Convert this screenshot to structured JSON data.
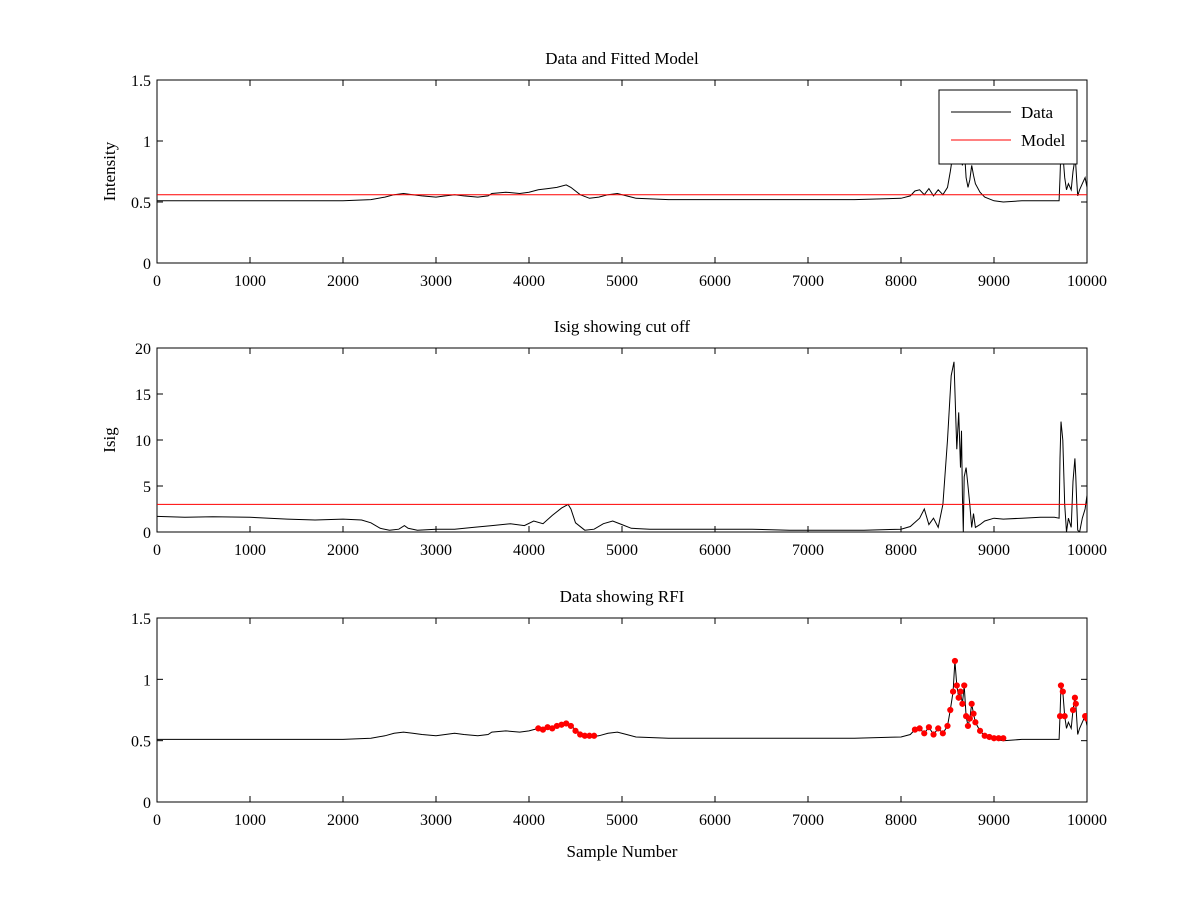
{
  "chart_data": [
    {
      "type": "line",
      "title": "Data and Fitted Model",
      "xlabel": "",
      "ylabel": "Intensity",
      "xlim": [
        0,
        10000
      ],
      "ylim": [
        0,
        1.5
      ],
      "xticks": [
        0,
        1000,
        2000,
        3000,
        4000,
        5000,
        6000,
        7000,
        8000,
        9000,
        10000
      ],
      "xtick_labels": [
        "0",
        "1000",
        "2000",
        "3000",
        "4000",
        "5000",
        "6000",
        "7000",
        "8000",
        "9000",
        "10000"
      ],
      "yticks": [
        0,
        0.5,
        1,
        1.5
      ],
      "ytick_labels": [
        "0",
        "0.5",
        "1",
        "1.5"
      ],
      "grid": false,
      "legend": {
        "position": "top-right",
        "entries": [
          "Data",
          "Model"
        ]
      },
      "series": [
        {
          "name": "Data",
          "color": "#000000",
          "style": "line",
          "x": [
            0,
            500,
            1000,
            1500,
            2000,
            2300,
            2450,
            2550,
            2650,
            2750,
            2850,
            3000,
            3100,
            3200,
            3300,
            3450,
            3560,
            3600,
            3750,
            3900,
            4000,
            4100,
            4200,
            4300,
            4400,
            4450,
            4550,
            4650,
            4750,
            4850,
            4950,
            5050,
            5150,
            5500,
            6000,
            6500,
            7000,
            7500,
            8000,
            8100,
            8150,
            8200,
            8250,
            8300,
            8350,
            8400,
            8450,
            8500,
            8530,
            8560,
            8580,
            8600,
            8620,
            8640,
            8660,
            8680,
            8700,
            8720,
            8740,
            8760,
            8780,
            8800,
            8850,
            8900,
            9000,
            9100,
            9300,
            9500,
            9650,
            9700,
            9710,
            9720,
            9740,
            9760,
            9780,
            9800,
            9830,
            9850,
            9870,
            9880,
            9900,
            9920,
            9950,
            9980,
            10000
          ],
          "y": [
            0.51,
            0.51,
            0.51,
            0.51,
            0.51,
            0.52,
            0.54,
            0.56,
            0.57,
            0.56,
            0.55,
            0.54,
            0.55,
            0.56,
            0.55,
            0.54,
            0.55,
            0.57,
            0.58,
            0.57,
            0.58,
            0.6,
            0.61,
            0.62,
            0.64,
            0.62,
            0.56,
            0.53,
            0.54,
            0.56,
            0.57,
            0.55,
            0.53,
            0.52,
            0.52,
            0.52,
            0.52,
            0.52,
            0.53,
            0.55,
            0.59,
            0.6,
            0.56,
            0.61,
            0.55,
            0.6,
            0.56,
            0.62,
            0.75,
            0.9,
            1.15,
            0.95,
            0.85,
            0.9,
            0.8,
            0.95,
            0.7,
            0.62,
            0.68,
            0.8,
            0.72,
            0.65,
            0.58,
            0.54,
            0.51,
            0.5,
            0.51,
            0.51,
            0.51,
            0.51,
            0.7,
            0.95,
            0.9,
            0.7,
            0.6,
            0.65,
            0.6,
            0.75,
            0.85,
            0.8,
            0.55,
            0.6,
            0.65,
            0.7,
            0.62
          ]
        },
        {
          "name": "Model",
          "color": "#ff0000",
          "style": "line",
          "x": [
            0,
            10000
          ],
          "y": [
            0.56,
            0.56
          ]
        }
      ]
    },
    {
      "type": "line",
      "title": "Isig showing cut off",
      "xlabel": "",
      "ylabel": "Isig",
      "xlim": [
        0,
        10000
      ],
      "ylim": [
        0,
        20
      ],
      "xticks": [
        0,
        1000,
        2000,
        3000,
        4000,
        5000,
        6000,
        7000,
        8000,
        9000,
        10000
      ],
      "xtick_labels": [
        "0",
        "1000",
        "2000",
        "3000",
        "4000",
        "5000",
        "6000",
        "7000",
        "8000",
        "9000",
        "10000"
      ],
      "yticks": [
        0,
        5,
        10,
        15,
        20
      ],
      "ytick_labels": [
        "0",
        "5",
        "10",
        "15",
        "20"
      ],
      "grid": false,
      "series": [
        {
          "color": "#000000",
          "style": "line",
          "x": [
            0,
            300,
            600,
            1000,
            1400,
            1700,
            2000,
            2200,
            2300,
            2400,
            2500,
            2600,
            2660,
            2700,
            2800,
            3000,
            3200,
            3400,
            3600,
            3800,
            3950,
            4050,
            4150,
            4250,
            4350,
            4420,
            4450,
            4500,
            4600,
            4700,
            4800,
            4900,
            5000,
            5100,
            5300,
            5600,
            6000,
            6400,
            6800,
            7200,
            7600,
            8000,
            8100,
            8200,
            8250,
            8300,
            8350,
            8400,
            8450,
            8500,
            8540,
            8570,
            8590,
            8600,
            8620,
            8640,
            8650,
            8660,
            8670,
            8680,
            8700,
            8720,
            8740,
            8760,
            8780,
            8800,
            8850,
            8900,
            9000,
            9100,
            9300,
            9500,
            9650,
            9700,
            9710,
            9720,
            9740,
            9760,
            9780,
            9800,
            9830,
            9850,
            9870,
            9880,
            9900,
            9920,
            9950,
            9980,
            10000
          ],
          "y": [
            1.7,
            1.6,
            1.65,
            1.6,
            1.4,
            1.3,
            1.4,
            1.3,
            1.0,
            0.4,
            0.2,
            0.3,
            0.7,
            0.4,
            0.2,
            0.3,
            0.3,
            0.5,
            0.7,
            0.9,
            0.7,
            1.2,
            0.9,
            1.8,
            2.6,
            3.0,
            2.5,
            1.0,
            0.2,
            0.3,
            0.9,
            1.2,
            0.8,
            0.4,
            0.3,
            0.3,
            0.3,
            0.3,
            0.2,
            0.2,
            0.2,
            0.3,
            0.6,
            1.5,
            2.5,
            0.8,
            1.5,
            0.5,
            3.0,
            10.0,
            17.0,
            18.5,
            12.0,
            9.0,
            13.0,
            7.0,
            11.0,
            4.0,
            0.0,
            6.0,
            7.0,
            5.0,
            3.0,
            0.5,
            2.0,
            0.5,
            0.8,
            1.2,
            1.5,
            1.4,
            1.5,
            1.6,
            1.6,
            1.5,
            8.0,
            12.0,
            10.0,
            3.0,
            0.0,
            1.5,
            0.5,
            5.5,
            8.0,
            6.0,
            0.2,
            0.0,
            1.5,
            2.5,
            4.0
          ]
        },
        {
          "color": "#ff0000",
          "style": "line",
          "x": [
            0,
            10000
          ],
          "y": [
            3,
            3
          ]
        }
      ]
    },
    {
      "type": "scatter",
      "title": "Data showing RFI",
      "xlabel": "Sample Number",
      "ylabel": "",
      "xlim": [
        0,
        10000
      ],
      "ylim": [
        0,
        1.5
      ],
      "xticks": [
        0,
        1000,
        2000,
        3000,
        4000,
        5000,
        6000,
        7000,
        8000,
        9000,
        10000
      ],
      "xtick_labels": [
        "0",
        "1000",
        "2000",
        "3000",
        "4000",
        "5000",
        "6000",
        "7000",
        "8000",
        "9000",
        "10000"
      ],
      "yticks": [
        0,
        0.5,
        1,
        1.5
      ],
      "ytick_labels": [
        "0",
        "0.5",
        "1",
        "1.5"
      ],
      "grid": false,
      "series": [
        {
          "color": "#000000",
          "style": "line",
          "x": [
            0,
            500,
            1000,
            1500,
            2000,
            2300,
            2450,
            2550,
            2650,
            2750,
            2850,
            3000,
            3100,
            3200,
            3300,
            3450,
            3560,
            3600,
            3750,
            3900,
            4000,
            4100,
            4200,
            4300,
            4400,
            4450,
            4550,
            4650,
            4750,
            4850,
            4950,
            5050,
            5150,
            5500,
            6000,
            6500,
            7000,
            7500,
            8000,
            8100,
            8150,
            8200,
            8250,
            8300,
            8350,
            8400,
            8450,
            8500,
            8530,
            8560,
            8580,
            8600,
            8620,
            8640,
            8660,
            8680,
            8700,
            8720,
            8740,
            8760,
            8780,
            8800,
            8850,
            8900,
            9000,
            9100,
            9300,
            9500,
            9650,
            9700,
            9710,
            9720,
            9740,
            9760,
            9780,
            9800,
            9830,
            9850,
            9870,
            9880,
            9900,
            9920,
            9950,
            9980,
            10000
          ],
          "y": [
            0.51,
            0.51,
            0.51,
            0.51,
            0.51,
            0.52,
            0.54,
            0.56,
            0.57,
            0.56,
            0.55,
            0.54,
            0.55,
            0.56,
            0.55,
            0.54,
            0.55,
            0.57,
            0.58,
            0.57,
            0.58,
            0.6,
            0.61,
            0.62,
            0.64,
            0.62,
            0.56,
            0.53,
            0.54,
            0.56,
            0.57,
            0.55,
            0.53,
            0.52,
            0.52,
            0.52,
            0.52,
            0.52,
            0.53,
            0.55,
            0.59,
            0.6,
            0.56,
            0.61,
            0.55,
            0.6,
            0.56,
            0.62,
            0.75,
            0.9,
            1.15,
            0.95,
            0.85,
            0.9,
            0.8,
            0.95,
            0.7,
            0.62,
            0.68,
            0.8,
            0.72,
            0.65,
            0.58,
            0.54,
            0.51,
            0.5,
            0.51,
            0.51,
            0.51,
            0.51,
            0.7,
            0.95,
            0.9,
            0.7,
            0.6,
            0.65,
            0.6,
            0.75,
            0.85,
            0.8,
            0.55,
            0.6,
            0.65,
            0.7,
            0.62
          ]
        },
        {
          "color": "#ff0000",
          "style": "markers",
          "x": [
            4100,
            4150,
            4200,
            4250,
            4300,
            4350,
            4400,
            4450,
            4500,
            4550,
            4600,
            4650,
            4700,
            8150,
            8200,
            8250,
            8300,
            8350,
            8400,
            8450,
            8500,
            8530,
            8560,
            8580,
            8600,
            8620,
            8640,
            8660,
            8680,
            8700,
            8720,
            8740,
            8760,
            8780,
            8800,
            8850,
            8900,
            8950,
            9000,
            9050,
            9100,
            9710,
            9720,
            9740,
            9760,
            9850,
            9870,
            9880,
            9980,
            10000
          ],
          "y": [
            0.6,
            0.59,
            0.61,
            0.6,
            0.62,
            0.63,
            0.64,
            0.62,
            0.58,
            0.55,
            0.54,
            0.54,
            0.54,
            0.59,
            0.6,
            0.56,
            0.61,
            0.55,
            0.6,
            0.56,
            0.62,
            0.75,
            0.9,
            1.15,
            0.95,
            0.85,
            0.9,
            0.8,
            0.95,
            0.7,
            0.62,
            0.68,
            0.8,
            0.72,
            0.65,
            0.58,
            0.54,
            0.53,
            0.52,
            0.52,
            0.52,
            0.7,
            0.95,
            0.9,
            0.7,
            0.75,
            0.85,
            0.8,
            0.7,
            0.68
          ]
        }
      ]
    }
  ]
}
